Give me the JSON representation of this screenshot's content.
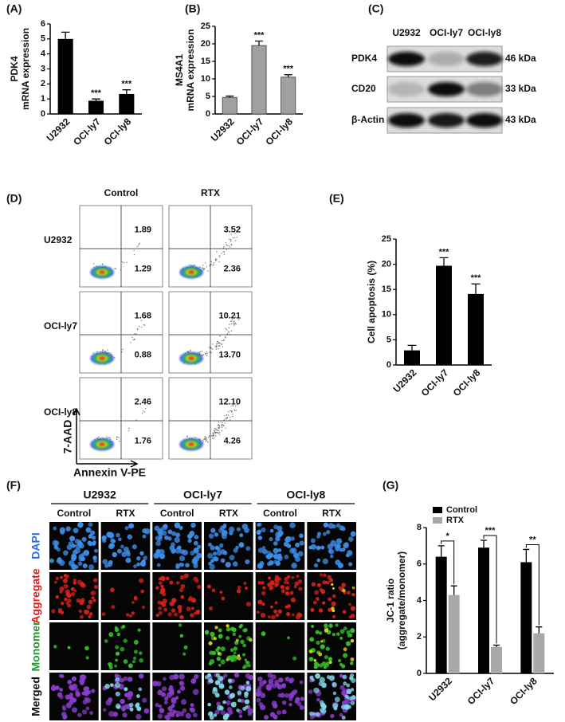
{
  "figure": {
    "blot": {
      "panel": "(C)",
      "columns": [
        "U2932",
        "OCI-ly7",
        "OCI-ly8"
      ],
      "rows": [
        {
          "protein": "PDK4",
          "size": "46 kDa"
        },
        {
          "protein": "CD20",
          "size": "33 kDa"
        },
        {
          "protein": "β-Actin",
          "size": "43 kDa"
        }
      ]
    },
    "flow": {
      "panel": "(D)",
      "columns": [
        "Control",
        "RTX"
      ],
      "x_axis": "Annexin V-PE",
      "y_axis": "7-AAD",
      "rows": [
        {
          "cell_line": "U2932",
          "quadrants": [
            [
              "1.89",
              "1.29"
            ],
            [
              "3.52",
              "2.36"
            ]
          ]
        },
        {
          "cell_line": "OCI-ly7",
          "quadrants": [
            [
              "1.68",
              "0.88"
            ],
            [
              "10.21",
              "13.70"
            ]
          ]
        },
        {
          "cell_line": "OCI-ly8",
          "quadrants": [
            [
              "2.46",
              "1.76"
            ],
            [
              "12.10",
              "4.26"
            ]
          ]
        }
      ]
    },
    "microscopy": {
      "panel": "(F)",
      "groups": [
        "U2932",
        "OCI-ly7",
        "OCI-ly8"
      ],
      "conditions": [
        "Control",
        "RTX"
      ],
      "channels": [
        "DAPI",
        "Aggregate",
        "Monomer",
        "Merged"
      ]
    }
  },
  "chart_data": [
    {
      "type": "bar",
      "panel": "(A)",
      "ylabel": [
        "PDK4",
        "mRNA expression"
      ],
      "categories": [
        "U2932",
        "OCI-ly7",
        "OCI-ly8"
      ],
      "values": [
        5.0,
        0.88,
        1.33
      ],
      "errors": [
        0.45,
        0.12,
        0.28
      ],
      "significance": [
        null,
        "***",
        "***"
      ],
      "color": "#000000",
      "ylim": [
        0,
        6
      ],
      "yticks": [
        0,
        1,
        2,
        3,
        4,
        5,
        6
      ]
    },
    {
      "type": "bar",
      "panel": "(B)",
      "ylabel": [
        "MS4A1",
        "mRNA expression"
      ],
      "categories": [
        "U2932",
        "OCI-ly7",
        "OCI-ly8"
      ],
      "values": [
        4.7,
        19.5,
        10.5
      ],
      "errors": [
        0.4,
        1.3,
        0.7
      ],
      "significance": [
        null,
        "***",
        "***"
      ],
      "color": "#a0a0a0",
      "ylim": [
        0,
        25
      ],
      "yticks": [
        0,
        5,
        10,
        15,
        20,
        25
      ]
    },
    {
      "type": "bar",
      "panel": "(E)",
      "ylabel": [
        "Cell apoptosis (%)"
      ],
      "categories": [
        "U2932",
        "OCI-ly7",
        "OCI-ly8"
      ],
      "values": [
        2.9,
        19.7,
        14.1
      ],
      "errors": [
        1.0,
        1.6,
        2.0
      ],
      "significance": [
        null,
        "***",
        "***"
      ],
      "color": "#000000",
      "ylim": [
        0,
        25
      ],
      "yticks": [
        0,
        5,
        10,
        15,
        20,
        25
      ]
    },
    {
      "type": "grouped_bar",
      "panel": "(G)",
      "ylabel": [
        "JC-1 ratio",
        "(aggregate/monomer)"
      ],
      "categories": [
        "U2932",
        "OCI-ly7",
        "OCI-ly8"
      ],
      "series": [
        {
          "name": "Control",
          "color": "#000000",
          "values": [
            6.4,
            6.9,
            6.1
          ],
          "errors": [
            0.6,
            0.4,
            0.7
          ]
        },
        {
          "name": "RTX",
          "color": "#a8a8a8",
          "values": [
            4.3,
            1.45,
            2.2
          ],
          "errors": [
            0.5,
            0.1,
            0.35
          ]
        }
      ],
      "significance": [
        "*",
        "***",
        "**"
      ],
      "legend": "upper left",
      "ylim": [
        0,
        8
      ],
      "yticks": [
        0,
        2,
        4,
        6,
        8
      ]
    }
  ]
}
